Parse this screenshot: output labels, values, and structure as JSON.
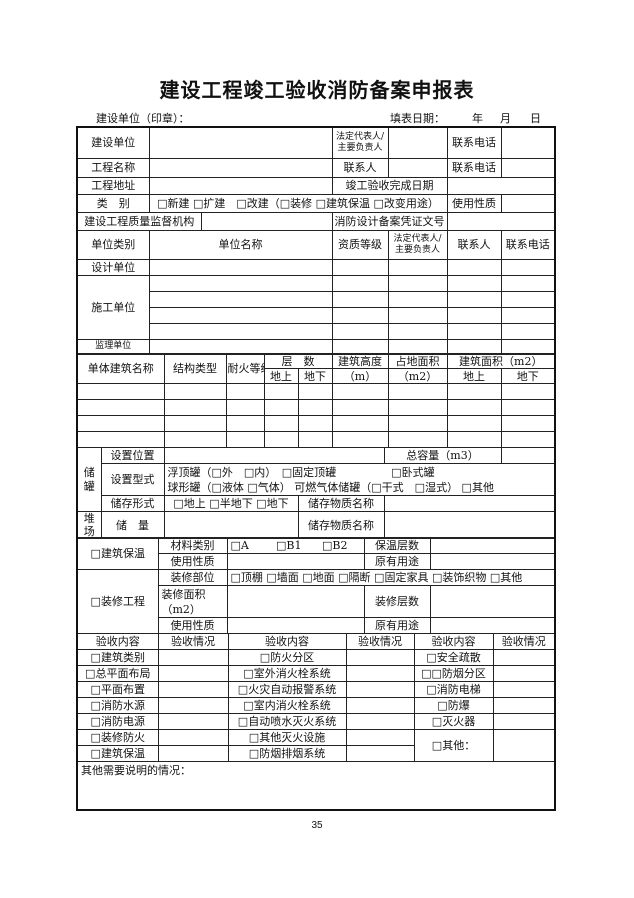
{
  "title": "建设工程竣工验收消防备案申报表",
  "header": {
    "unit_seal": "建设单位（印章）：",
    "fill_date": "填表日期：",
    "year": "年",
    "month": "月",
    "day": "日"
  },
  "basic": {
    "build_unit": "建设单位",
    "legal_rep": "法定代表人/主要负责人",
    "phone": "联系电话",
    "project_name": "工程名称",
    "contact": "联系人",
    "address": "工程地址",
    "completion_date": "竣工验收完成日期",
    "category": "类　别",
    "category_options": "□新建 □扩建　□改建（□装修 □建筑保温 □改变用途）",
    "usage": "使用性质",
    "quality_agency": "建设工程质量监督机构",
    "design_record_no": "消防设计备案凭证文号"
  },
  "units": {
    "headers": [
      "单位类别",
      "单位名称",
      "资质等级",
      "法定代表人/主要负责人",
      "联系人",
      "联系电话"
    ],
    "rows": [
      "设计单位",
      "施工单位",
      "监理单位"
    ]
  },
  "buildings": {
    "name": "单体建筑名称",
    "structure": "结构类型",
    "fire_rating": "耐火等级",
    "floors": "层　数",
    "above": "地上",
    "below": "地下",
    "height": "建筑高度",
    "height_unit": "（m）",
    "footprint": "占地面积",
    "footprint_unit": "（m2）",
    "area": "建筑面积（m2）"
  },
  "storage": {
    "tank": "储罐",
    "location": "设置位置",
    "capacity": "总容量（m3）",
    "type": "设置型式",
    "type_line1": "浮顶罐（□外　□内）　□固定顶罐　　　　　□卧式罐",
    "type_line2": "球形罐（□液体 □气体） 可燃气体储罐（□干式　□湿式） □其他",
    "form": "储存形式",
    "form_options": "□地上 □半地下 □地下",
    "material_name": "储存物质名称",
    "yard": "堆场",
    "amount": "储　量"
  },
  "insulation": {
    "label": "□建筑保温",
    "material": "材料类别",
    "grade_a": "□A",
    "grade_b1": "□B1",
    "grade_b2": "□B2",
    "layers": "保温层数",
    "usage": "使用性质",
    "original_use": "原有用途"
  },
  "decoration": {
    "label": "□装修工程",
    "parts": "装修部位",
    "parts_options": "□顶棚 □墙面 □地面 □隔断 □固定家具 □装饰织物 □其他",
    "area": "装修面积（m2）",
    "layers": "装修层数",
    "usage": "使用性质",
    "original_use": "原有用途"
  },
  "acceptance": {
    "content": "验收内容",
    "status": "验收情况",
    "col1": [
      "□建筑类别",
      "□总平面布局",
      "□平面布置",
      "□消防水源",
      "□消防电源",
      "□装修防火",
      "□建筑保温"
    ],
    "col2": [
      "□防火分区",
      "□室外消火栓系统",
      "□火灾自动报警系统",
      "□室内消火栓系统",
      "□自动喷水灭火系统",
      "□其他灭火设施",
      "□防烟排烟系统"
    ],
    "col3": [
      "□安全疏散",
      "□□防烟分区",
      "□消防电梯",
      "□防爆",
      "□灭火器",
      "□其他："
    ]
  },
  "notes": "其他需要说明的情况：",
  "page_number": "35"
}
